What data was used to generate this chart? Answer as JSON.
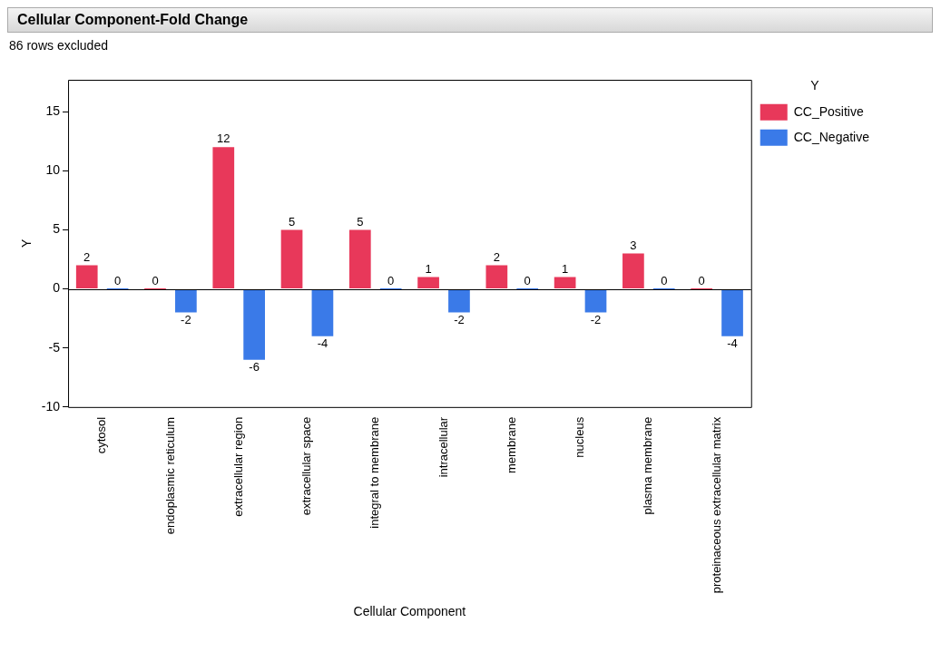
{
  "chart_data": {
    "type": "bar",
    "title": "Cellular Component-Fold Change",
    "subtitle": "86 rows excluded",
    "xlabel": "Cellular Component",
    "ylabel": "Y",
    "legend_title": "Y",
    "categories": [
      "cytosol",
      "endoplasmic reticulum",
      "extracellular region",
      "extracellular space",
      "integral to membrane",
      "intracellular",
      "membrane",
      "nucleus",
      "plasma membrane",
      "proteinaceous extracellular matrix"
    ],
    "series": [
      {
        "name": "CC_Positive",
        "color": "#e8385a",
        "values": [
          2,
          0,
          12,
          5,
          5,
          1,
          2,
          1,
          3,
          0
        ]
      },
      {
        "name": "CC_Negative",
        "color": "#3a7ae8",
        "values": [
          0,
          -2,
          -6,
          -4,
          0,
          -2,
          0,
          -2,
          0,
          -4
        ]
      }
    ],
    "ylim": [
      -10,
      17.7
    ],
    "yticks": [
      -10,
      -5,
      0,
      5,
      10,
      15
    ],
    "ref_lines": [
      {
        "axis": "y",
        "value": 0,
        "color": "#000000"
      }
    ],
    "data_labels": true,
    "grid": false,
    "legend": "top right"
  }
}
